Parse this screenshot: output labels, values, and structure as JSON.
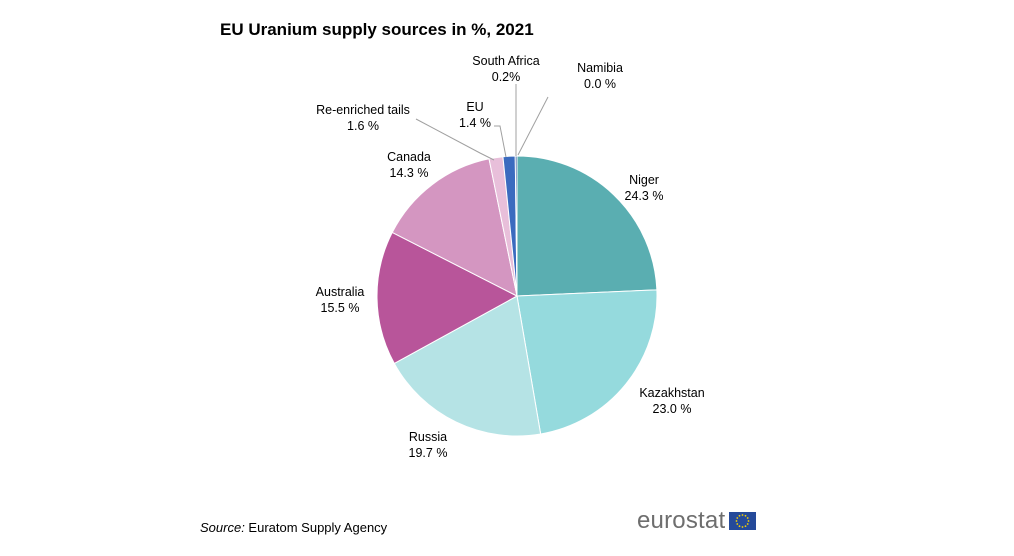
{
  "chart_data": {
    "type": "pie",
    "title": "EU Uranium supply sources in %, 2021",
    "slices": [
      {
        "label": "Niger",
        "value": 24.3,
        "value_label": "24.3 %",
        "color": "#5aaeb1"
      },
      {
        "label": "Kazakhstan",
        "value": 23.0,
        "value_label": "23.0 %",
        "color": "#95dadd"
      },
      {
        "label": "Russia",
        "value": 19.7,
        "value_label": "19.7 %",
        "color": "#b5e3e5"
      },
      {
        "label": "Australia",
        "value": 15.5,
        "value_label": "15.5 %",
        "color": "#b8559a"
      },
      {
        "label": "Canada",
        "value": 14.3,
        "value_label": "14.3 %",
        "color": "#d496c1"
      },
      {
        "label": "Re-enriched tails",
        "value": 1.6,
        "value_label": "1.6 %",
        "color": "#e8bfda"
      },
      {
        "label": "EU",
        "value": 1.4,
        "value_label": "1.4 %",
        "color": "#3b6bbf"
      },
      {
        "label": "South Africa",
        "value": 0.2,
        "value_label": "0.2%",
        "color": "#2b4c9b"
      },
      {
        "label": "Namibia",
        "value": 0.0,
        "value_label": "0.0 %",
        "color": "#999999"
      }
    ],
    "start": "top",
    "direction": "clockwise"
  },
  "source": {
    "lead": "Source:",
    "text": " Euratom Supply Agency"
  },
  "logo": {
    "text": "eurostat",
    "flag_color": "#254a9a",
    "star_color": "#f5d000"
  }
}
